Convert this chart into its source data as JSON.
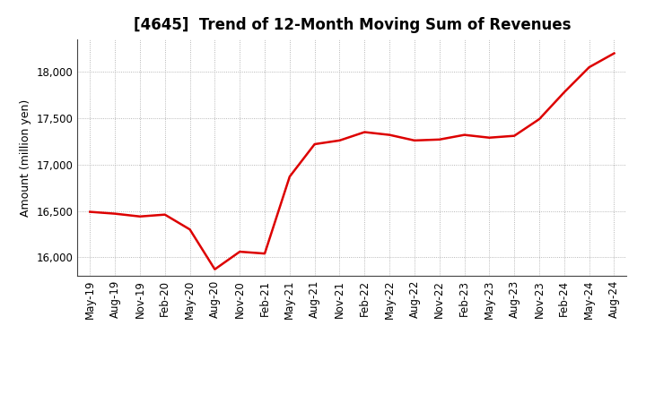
{
  "title": "[4645]  Trend of 12-Month Moving Sum of Revenues",
  "ylabel": "Amount (million yen)",
  "line_color": "#dd0000",
  "background_color": "#ffffff",
  "grid_color": "#999999",
  "ylim": [
    15800,
    18350
  ],
  "yticks": [
    16000,
    16500,
    17000,
    17500,
    18000
  ],
  "x_labels": [
    "May-19",
    "Aug-19",
    "Nov-19",
    "Feb-20",
    "May-20",
    "Aug-20",
    "Nov-20",
    "Feb-21",
    "May-21",
    "Aug-21",
    "Nov-21",
    "Feb-22",
    "May-22",
    "Aug-22",
    "Nov-22",
    "Feb-23",
    "May-23",
    "Aug-23",
    "Nov-23",
    "Feb-24",
    "May-24",
    "Aug-24"
  ],
  "values": [
    16490,
    16470,
    16440,
    16460,
    16300,
    15870,
    16060,
    16040,
    16870,
    17220,
    17260,
    17350,
    17320,
    17260,
    17270,
    17320,
    17290,
    17310,
    17490,
    17780,
    18050,
    18200
  ],
  "title_fontsize": 12,
  "ylabel_fontsize": 9,
  "tick_fontsize": 8.5,
  "line_width": 1.8
}
